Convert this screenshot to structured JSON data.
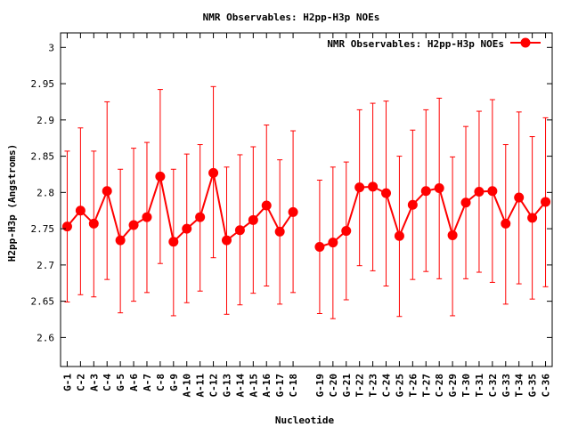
{
  "chart_data": {
    "type": "line",
    "title": "NMR Observables: H2pp-H3p NOEs",
    "xlabel": "Nucleotide",
    "ylabel": "H2pp-H3p (Angstroms)",
    "ylim": [
      2.56,
      3.02
    ],
    "yticks": [
      2.6,
      2.65,
      2.7,
      2.75,
      2.8,
      2.85,
      2.9,
      2.95,
      3
    ],
    "ytick_labels": [
      "2.6",
      "2.65",
      "2.7",
      "2.75",
      "2.8",
      "2.85",
      "2.9",
      "2.95",
      "3"
    ],
    "grid": false,
    "legend_position": "top-right",
    "series_color": "#ff0000",
    "categories": [
      "G-1",
      "C-2",
      "A-3",
      "C-4",
      "G-5",
      "A-6",
      "A-7",
      "C-8",
      "G-9",
      "A-10",
      "A-11",
      "C-12",
      "G-13",
      "A-14",
      "A-15",
      "A-16",
      "G-17",
      "C-18",
      "",
      "G-19",
      "C-20",
      "G-21",
      "T-22",
      "T-23",
      "C-24",
      "G-25",
      "T-26",
      "T-27",
      "C-28",
      "G-29",
      "T-30",
      "T-31",
      "C-32",
      "G-33",
      "T-34",
      "G-35",
      "C-36"
    ],
    "series": [
      {
        "name": "NMR Observables: H2pp-H3p NOEs",
        "values": [
          2.753,
          2.775,
          2.757,
          2.802,
          2.734,
          2.755,
          2.766,
          2.822,
          2.732,
          2.75,
          2.766,
          2.827,
          2.734,
          2.748,
          2.762,
          2.782,
          2.746,
          2.773,
          null,
          2.725,
          2.731,
          2.747,
          2.807,
          2.808,
          2.799,
          2.74,
          2.783,
          2.802,
          2.806,
          2.741,
          2.786,
          2.801,
          2.802,
          2.757,
          2.793,
          2.765,
          2.787
        ],
        "err_low": [
          2.649,
          2.659,
          2.656,
          2.68,
          2.634,
          2.65,
          2.662,
          2.702,
          2.63,
          2.648,
          2.664,
          2.71,
          2.632,
          2.645,
          2.661,
          2.671,
          2.646,
          2.662,
          null,
          2.633,
          2.626,
          2.652,
          2.699,
          2.692,
          2.671,
          2.629,
          2.68,
          2.691,
          2.681,
          2.63,
          2.681,
          2.69,
          2.676,
          2.646,
          2.674,
          2.653,
          2.67
        ],
        "err_high": [
          2.857,
          2.889,
          2.857,
          2.925,
          2.832,
          2.861,
          2.869,
          2.942,
          2.832,
          2.853,
          2.866,
          2.946,
          2.835,
          2.852,
          2.863,
          2.893,
          2.845,
          2.885,
          null,
          2.817,
          2.835,
          2.842,
          2.914,
          2.923,
          2.926,
          2.85,
          2.886,
          2.914,
          2.93,
          2.849,
          2.891,
          2.912,
          2.928,
          2.866,
          2.911,
          2.877,
          2.903
        ]
      }
    ]
  }
}
